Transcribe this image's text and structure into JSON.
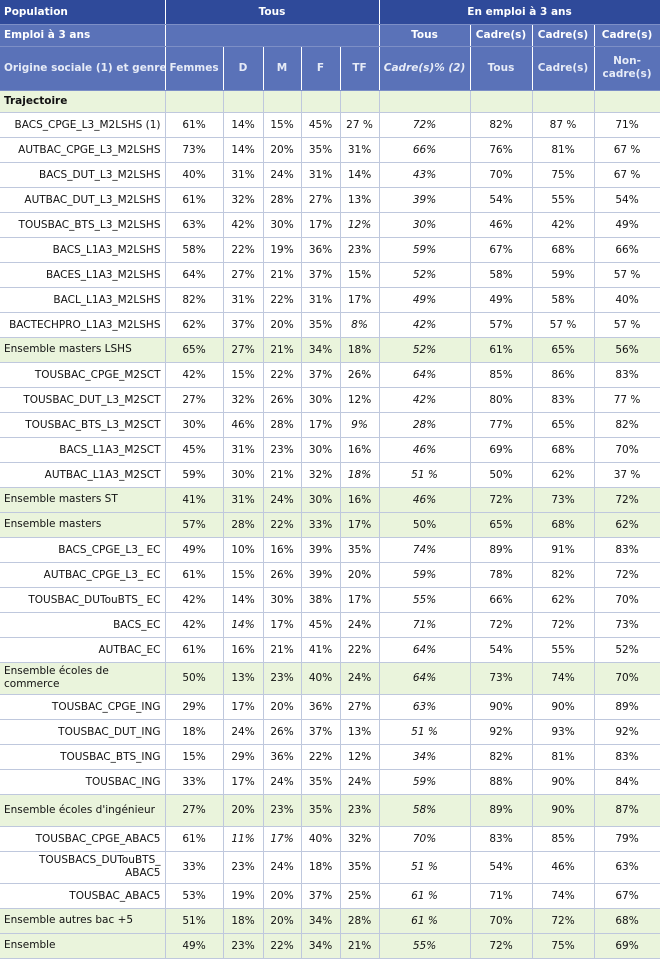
{
  "header": {
    "population": "Population",
    "tous": "Tous",
    "en_emploi": "En emploi à 3 ans",
    "emploi_3ans": "Emploi à 3 ans",
    "tous2": "Tous",
    "cadres_a": "Cadre(s)",
    "cadres_b": "Cadre(s)",
    "cadres_c": "Cadre(s)",
    "origine": "Origine sociale (1) et genre",
    "femmes": "Femmes",
    "d": "D",
    "m": "M",
    "f": "F",
    "tf": "TF",
    "cadres_pct": "Cadre(s)% (2)",
    "tous3": "Tous",
    "cadres_d": "Cadre(s)",
    "non_cadres": "Non-cadre(s)"
  },
  "section_title": "Trajectoire",
  "rows": [
    {
      "label": "BACS_CPGE_L3_M2LSHS (1)",
      "type": "row",
      "v": [
        "61%",
        "14%",
        "15%",
        "45%",
        "27 %",
        "72%",
        "82%",
        "87 %",
        "71%"
      ],
      "it": [
        5
      ]
    },
    {
      "label": "AUTBAC_CPGE_L3_M2LSHS",
      "type": "row",
      "v": [
        "73%",
        "14%",
        "20%",
        "35%",
        "31%",
        "66%",
        "76%",
        "81%",
        "67 %"
      ],
      "it": [
        5
      ]
    },
    {
      "label": "BACS_DUT_L3_M2LSHS",
      "type": "row",
      "v": [
        "40%",
        "31%",
        "24%",
        "31%",
        "14%",
        "43%",
        "70%",
        "75%",
        "67 %"
      ],
      "it": [
        5
      ]
    },
    {
      "label": "AUTBAC_DUT_L3_M2LSHS",
      "type": "row",
      "v": [
        "61%",
        "32%",
        "28%",
        "27%",
        "13%",
        "39%",
        "54%",
        "55%",
        "54%"
      ],
      "it": [
        5
      ]
    },
    {
      "label": "TOUSBAC_BTS_L3_M2LSHS",
      "type": "row",
      "v": [
        "63%",
        "42%",
        "30%",
        "17%",
        "12%",
        "30%",
        "46%",
        "42%",
        "49%"
      ],
      "it": [
        4,
        5
      ]
    },
    {
      "label": "BACS_L1A3_M2LSHS",
      "type": "row",
      "v": [
        "58%",
        "22%",
        "19%",
        "36%",
        "23%",
        "59%",
        "67%",
        "68%",
        "66%"
      ],
      "it": [
        5
      ]
    },
    {
      "label": "BACES_L1A3_M2LSHS",
      "type": "row",
      "v": [
        "64%",
        "27%",
        "21%",
        "37%",
        "15%",
        "52%",
        "58%",
        "59%",
        "57 %"
      ],
      "it": [
        5
      ]
    },
    {
      "label": "BACL_L1A3_M2LSHS",
      "type": "row",
      "v": [
        "82%",
        "31%",
        "22%",
        "31%",
        "17%",
        "49%",
        "49%",
        "58%",
        "40%"
      ],
      "it": [
        5
      ]
    },
    {
      "label": "BACTECHPRO_L1A3_M2LSHS",
      "type": "row",
      "v": [
        "62%",
        "37%",
        "20%",
        "35%",
        "8%",
        "42%",
        "57%",
        "57 %",
        "57 %"
      ],
      "it": [
        4,
        5
      ]
    },
    {
      "label": "Ensemble masters LSHS",
      "type": "ens",
      "v": [
        "65%",
        "27%",
        "21%",
        "34%",
        "18%",
        "52%",
        "61%",
        "65%",
        "56%"
      ],
      "it": [
        5
      ]
    },
    {
      "label": "TOUSBAC_CPGE_M2SCT",
      "type": "row",
      "v": [
        "42%",
        "15%",
        "22%",
        "37%",
        "26%",
        "64%",
        "85%",
        "86%",
        "83%"
      ],
      "it": [
        5
      ]
    },
    {
      "label": "TOUSBAC_DUT_L3_M2SCT",
      "type": "row",
      "v": [
        "27%",
        "32%",
        "26%",
        "30%",
        "12%",
        "42%",
        "80%",
        "83%",
        "77 %"
      ],
      "it": [
        5
      ]
    },
    {
      "label": "TOUSBAC_BTS_L3_M2SCT",
      "type": "row",
      "v": [
        "30%",
        "46%",
        "28%",
        "17%",
        "9%",
        "28%",
        "77%",
        "65%",
        "82%"
      ],
      "it": [
        4,
        5
      ]
    },
    {
      "label": "BACS_L1A3_M2SCT",
      "type": "row",
      "v": [
        "45%",
        "31%",
        "23%",
        "30%",
        "16%",
        "46%",
        "69%",
        "68%",
        "70%"
      ],
      "it": [
        5
      ]
    },
    {
      "label": "AUTBAC_L1A3_M2SCT",
      "type": "row",
      "v": [
        "59%",
        "30%",
        "21%",
        "32%",
        "18%",
        "51 %",
        "50%",
        "62%",
        "37 %"
      ],
      "it": [
        4,
        5
      ]
    },
    {
      "label": "Ensemble masters ST",
      "type": "ens",
      "v": [
        "41%",
        "31%",
        "24%",
        "30%",
        "16%",
        "46%",
        "72%",
        "73%",
        "72%"
      ],
      "it": [
        5
      ]
    },
    {
      "label": "Ensemble masters",
      "type": "ens",
      "v": [
        "57%",
        "28%",
        "22%",
        "33%",
        "17%",
        "50%",
        "65%",
        "68%",
        "62%"
      ],
      "it": []
    },
    {
      "label": "BACS_CPGE_L3_ EC",
      "type": "row",
      "v": [
        "49%",
        "10%",
        "16%",
        "39%",
        "35%",
        "74%",
        "89%",
        "91%",
        "83%"
      ],
      "it": [
        5
      ]
    },
    {
      "label": "AUTBAC_CPGE_L3_ EC",
      "type": "row",
      "v": [
        "61%",
        "15%",
        "26%",
        "39%",
        "20%",
        "59%",
        "78%",
        "82%",
        "72%"
      ],
      "it": [
        5
      ]
    },
    {
      "label": "TOUSBAC_DUTouBTS_ EC",
      "type": "row",
      "v": [
        "42%",
        "14%",
        "30%",
        "38%",
        "17%",
        "55%",
        "66%",
        "62%",
        "70%"
      ],
      "it": [
        5
      ]
    },
    {
      "label": "BACS_EC",
      "type": "row",
      "v": [
        "42%",
        "14%",
        "17%",
        "45%",
        "24%",
        "71%",
        "72%",
        "72%",
        "73%"
      ],
      "it": [
        1,
        5
      ]
    },
    {
      "label": "AUTBAC_EC",
      "type": "row",
      "v": [
        "61%",
        "16%",
        "21%",
        "41%",
        "22%",
        "64%",
        "54%",
        "55%",
        "52%"
      ],
      "it": [
        5
      ]
    },
    {
      "label": "Ensemble écoles de commerce",
      "type": "ens",
      "v": [
        "50%",
        "13%",
        "23%",
        "40%",
        "24%",
        "64%",
        "73%",
        "74%",
        "70%"
      ],
      "it": [
        5
      ]
    },
    {
      "label": "TOUSBAC_CPGE_ING",
      "type": "row",
      "v": [
        "29%",
        "17%",
        "20%",
        "36%",
        "27%",
        "63%",
        "90%",
        "90%",
        "89%"
      ],
      "it": [
        5
      ]
    },
    {
      "label": "TOUSBAC_DUT_ING",
      "type": "row",
      "v": [
        "18%",
        "24%",
        "26%",
        "37%",
        "13%",
        "51 %",
        "92%",
        "93%",
        "92%"
      ],
      "it": [
        5
      ]
    },
    {
      "label": "TOUSBAC_BTS_ING",
      "type": "row",
      "v": [
        "15%",
        "29%",
        "36%",
        "22%",
        "12%",
        "34%",
        "82%",
        "81%",
        "83%"
      ],
      "it": [
        5
      ]
    },
    {
      "label": "TOUSBAC_ING",
      "type": "row",
      "v": [
        "33%",
        "17%",
        "24%",
        "35%",
        "24%",
        "59%",
        "88%",
        "90%",
        "84%"
      ],
      "it": [
        5
      ]
    },
    {
      "label": "Ensemble écoles d'ingénieur",
      "type": "ens",
      "v": [
        "27%",
        "20%",
        "23%",
        "35%",
        "23%",
        "58%",
        "89%",
        "90%",
        "87%"
      ],
      "it": [
        5
      ]
    },
    {
      "label": "TOUSBAC_CPGE_ABAC5",
      "type": "row",
      "v": [
        "61%",
        "11%",
        "17%",
        "40%",
        "32%",
        "70%",
        "83%",
        "85%",
        "79%"
      ],
      "it": [
        1,
        2,
        5
      ]
    },
    {
      "label": "TOUSBACS_DUTouBTS_ ABAC5",
      "type": "row2",
      "v": [
        "33%",
        "23%",
        "24%",
        "18%",
        "35%",
        "51 %",
        "54%",
        "46%",
        "63%"
      ],
      "it": [
        5
      ]
    },
    {
      "label": "TOUSBAC_ABAC5",
      "type": "row",
      "v": [
        "53%",
        "19%",
        "20%",
        "37%",
        "25%",
        "61 %",
        "71%",
        "74%",
        "67%"
      ],
      "it": [
        5
      ]
    },
    {
      "label": "Ensemble autres bac +5",
      "type": "ens",
      "v": [
        "51%",
        "18%",
        "20%",
        "34%",
        "28%",
        "61 %",
        "70%",
        "72%",
        "68%"
      ],
      "it": [
        5
      ]
    },
    {
      "label": "Ensemble",
      "type": "ens",
      "v": [
        "49%",
        "23%",
        "22%",
        "34%",
        "21%",
        "55%",
        "72%",
        "75%",
        "69%"
      ],
      "it": [
        5
      ]
    }
  ]
}
